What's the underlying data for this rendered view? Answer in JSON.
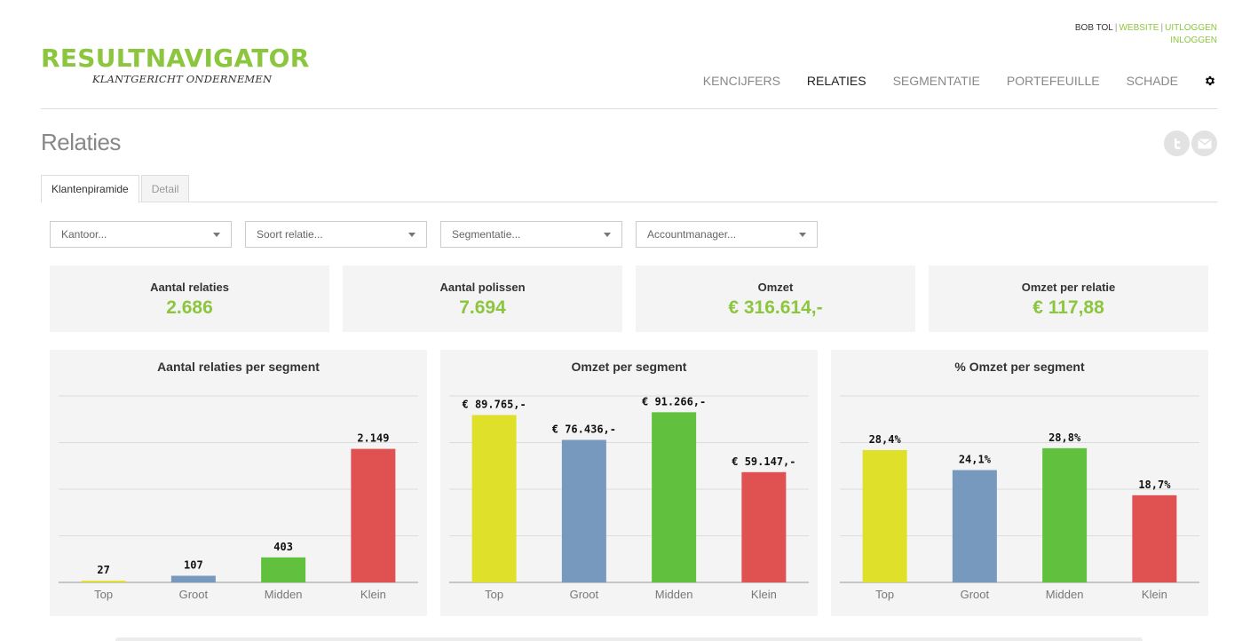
{
  "userbar": {
    "user": "BOB TOL",
    "website": "WEBSITE",
    "logout": "UITLOGGEN",
    "login": "INLOGGEN"
  },
  "logo": {
    "main": "RESULTNAVIGATOR",
    "sub": "KLANTGERICHT ONDERNEMEN"
  },
  "nav": {
    "items": [
      "KENCIJFERS",
      "RELATIES",
      "SEGMENTATIE",
      "PORTEFEUILLE",
      "SCHADE"
    ],
    "active": "RELATIES",
    "settings_icon": "gear-icon"
  },
  "page": {
    "title": "Relaties"
  },
  "share": {
    "icons": [
      "twitter-icon",
      "email-icon"
    ]
  },
  "tabs": [
    {
      "label": "Klantenpiramide",
      "active": true
    },
    {
      "label": "Detail",
      "active": false
    }
  ],
  "filters": {
    "kantoor": "Kantoor...",
    "soort_relatie": "Soort relatie...",
    "segmentatie": "Segmentatie...",
    "accountmanager": "Accountmanager..."
  },
  "kpis": [
    {
      "label": "Aantal relaties",
      "value": "2.686"
    },
    {
      "label": "Aantal polissen",
      "value": "7.694"
    },
    {
      "label": "Omzet",
      "value": "€ 316.614,-"
    },
    {
      "label": "Omzet per relatie",
      "value": "€ 117,88"
    }
  ],
  "colors": {
    "accent": "#8cc63f",
    "top": "#dfe029",
    "groot": "#7899be",
    "midden": "#61c13e",
    "klein": "#e05152"
  },
  "chart_data": [
    {
      "type": "bar",
      "title": "Aantal relaties per segment",
      "categories": [
        "Top",
        "Groot",
        "Midden",
        "Klein"
      ],
      "values": [
        27,
        107,
        403,
        2149
      ],
      "labels": [
        "27",
        "107",
        "403",
        "2.149"
      ],
      "ylim": [
        0,
        3000
      ],
      "grid": true
    },
    {
      "type": "bar",
      "title": "Omzet per segment",
      "categories": [
        "Top",
        "Groot",
        "Midden",
        "Klein"
      ],
      "values": [
        89765,
        76436,
        91266,
        59147
      ],
      "labels": [
        "€ 89.765,-",
        "€ 76.436,-",
        "€ 91.266,-",
        "€ 59.147,-"
      ],
      "ylim": [
        0,
        100000
      ],
      "grid": true
    },
    {
      "type": "bar",
      "title": "% Omzet per segment",
      "categories": [
        "Top",
        "Groot",
        "Midden",
        "Klein"
      ],
      "values": [
        28.4,
        24.1,
        28.8,
        18.7
      ],
      "labels": [
        "28,4%",
        "24,1%",
        "28,8%",
        "18,7%"
      ],
      "ylim": [
        0,
        40
      ],
      "grid": true
    }
  ]
}
